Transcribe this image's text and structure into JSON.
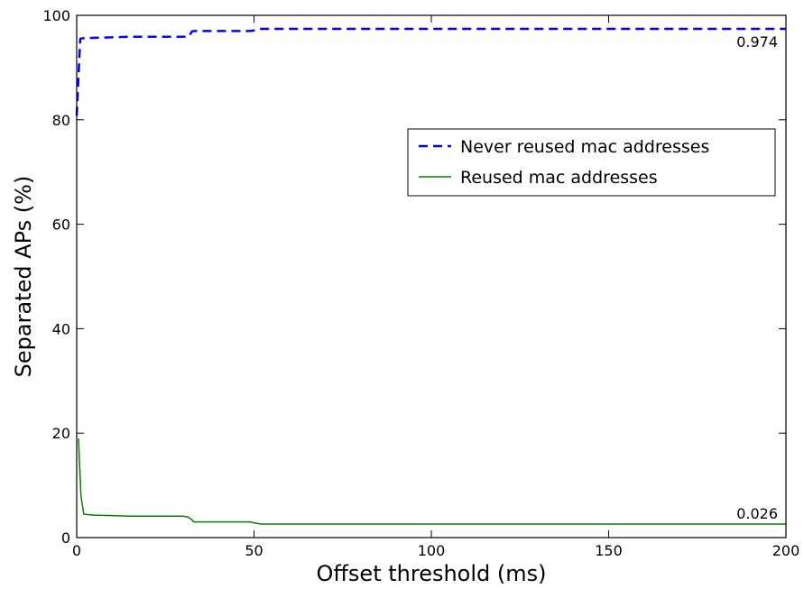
{
  "chart_data": {
    "type": "line",
    "title": "",
    "xlabel": "Offset threshold (ms)",
    "ylabel": "Separated APs (%)",
    "xlim": [
      0,
      200
    ],
    "ylim": [
      0,
      100
    ],
    "xticks": [
      0,
      50,
      100,
      150,
      200
    ],
    "yticks": [
      0,
      20,
      40,
      60,
      80,
      100
    ],
    "grid": false,
    "legend_position": "center-right",
    "series": [
      {
        "name": "Never reused mac addresses",
        "color": "#0000ff",
        "style": "dashed",
        "x": [
          0,
          1,
          1.5,
          5,
          10,
          15,
          20,
          25,
          30,
          31.5,
          32.5,
          33,
          40,
          45,
          49,
          50,
          52,
          60,
          100,
          150,
          200
        ],
        "y": [
          80.8,
          95.5,
          95.6,
          95.7,
          95.8,
          95.9,
          95.9,
          95.9,
          95.9,
          95.9,
          96.9,
          97.0,
          97.0,
          97.0,
          97.0,
          97.1,
          97.4,
          97.4,
          97.4,
          97.4,
          97.4
        ]
      },
      {
        "name": "Reused mac addresses",
        "color": "#008000",
        "style": "solid",
        "x": [
          0.5,
          1.2,
          2,
          3,
          5,
          10,
          15,
          20,
          25,
          30,
          31.5,
          32.5,
          33,
          40,
          49,
          50,
          52,
          58,
          60,
          100,
          150,
          200
        ],
        "y": [
          19,
          8,
          4.5,
          4.4,
          4.3,
          4.2,
          4.1,
          4.1,
          4.1,
          4.1,
          3.9,
          3.4,
          3.0,
          3.0,
          3.0,
          2.8,
          2.6,
          2.6,
          2.6,
          2.6,
          2.6,
          2.6
        ]
      }
    ],
    "annotations": [
      {
        "text": "0.974",
        "x": 200,
        "y": 97.4,
        "series": "Never reused mac addresses"
      },
      {
        "text": "0.026",
        "x": 200,
        "y": 2.6,
        "series": "Reused mac addresses"
      }
    ]
  }
}
